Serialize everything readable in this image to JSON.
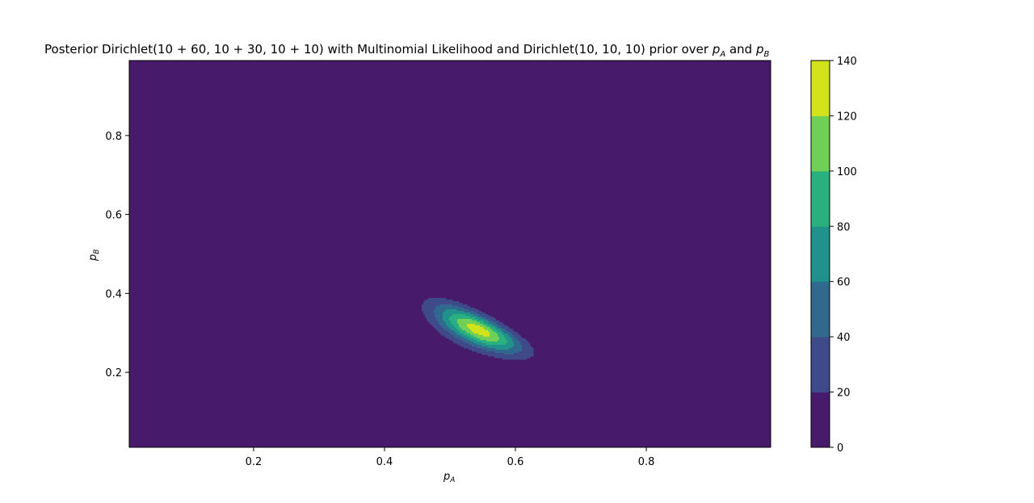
{
  "chart_data": {
    "type": "contourf",
    "title_parts": {
      "main": "Posterior Dirichlet(10 + 60, 10 + 30, 10 + 10) with Multinomial Likelihood and Dirichlet(10, 10, 10) prior over ",
      "pa_base": "p",
      "pa_sub": "A",
      "and": " and ",
      "pb_base": "p",
      "pb_sub": "B"
    },
    "xlabel": {
      "base": "p",
      "sub": "A"
    },
    "ylabel": {
      "base": "p",
      "sub": "B"
    },
    "xlim": [
      0.01,
      0.99
    ],
    "ylim": [
      0.01,
      0.99
    ],
    "x_ticks": [
      0.2,
      0.4,
      0.6,
      0.8
    ],
    "x_tick_labels": [
      "0.2",
      "0.4",
      "0.6",
      "0.8"
    ],
    "y_ticks": [
      0.2,
      0.4,
      0.6,
      0.8
    ],
    "y_tick_labels": [
      "0.2",
      "0.4",
      "0.6",
      "0.8"
    ],
    "dirichlet_alpha": [
      70,
      40,
      20
    ],
    "levels": [
      0,
      20,
      40,
      60,
      80,
      100,
      120,
      140
    ],
    "level_colors": [
      "#481a6c",
      "#3e4a89",
      "#31688e",
      "#21918c",
      "#2ab07f",
      "#70cf57",
      "#d2e21b"
    ],
    "colorbar_ticks": [
      0,
      20,
      40,
      60,
      80,
      100,
      120,
      140
    ],
    "colorbar_tick_labels": [
      "0",
      "20",
      "40",
      "60",
      "80",
      "100",
      "120",
      "140"
    ],
    "colorbar_range": [
      0,
      140
    ],
    "colorbar_position": "right",
    "grid": false
  }
}
